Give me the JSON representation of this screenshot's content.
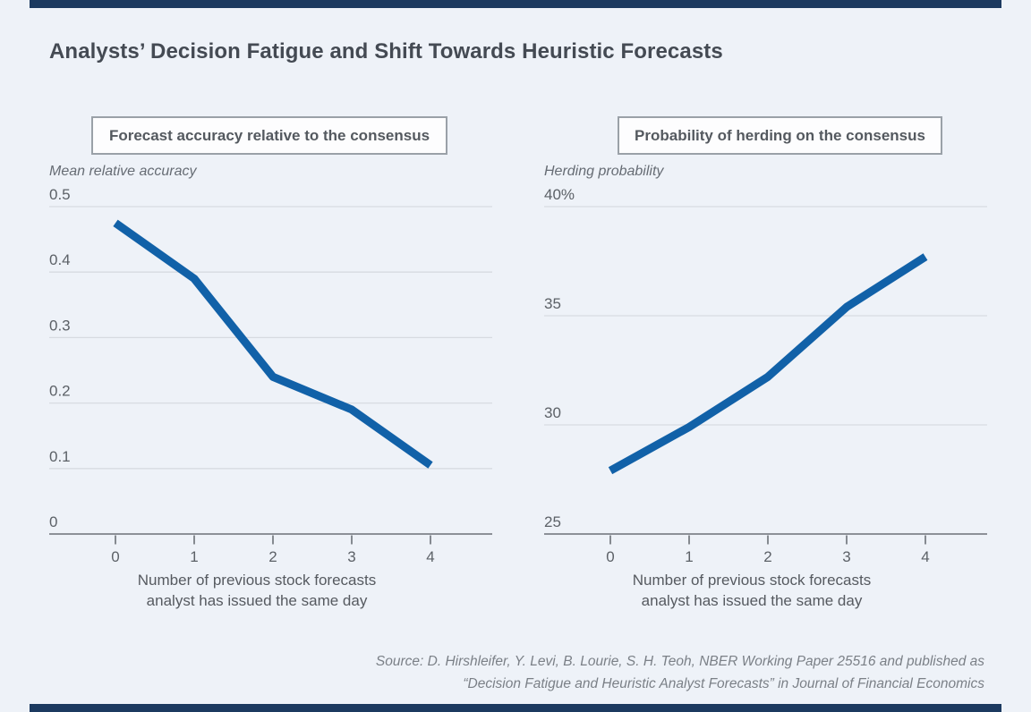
{
  "page": {
    "title": "Analysts’ Decision Fatigue and Shift Towards Heuristic Forecasts",
    "source_line1": "Source: D. Hirshleifer, Y. Levi, B. Lourie, S. H. Teoh, NBER Working Paper 25516 and published as",
    "source_line2": "“Decision Fatigue and Heuristic Analyst Forecasts” in Journal of Financial Economics"
  },
  "colors": {
    "background": "#eef2f8",
    "edge_bar": "#1c3a60",
    "line": "#1161a8",
    "gridline": "#d7dbe1",
    "axis": "#6b7077",
    "tick_label": "#5c6167",
    "axis_title": "#565a60",
    "header_border": "#9aa1a8",
    "title_text": "#444a53"
  },
  "chart_data": [
    {
      "type": "line",
      "title": "Forecast accuracy relative to the consensus",
      "unit_label": "Mean relative accuracy",
      "x": [
        0,
        1,
        2,
        3,
        4
      ],
      "values": [
        0.475,
        0.39,
        0.24,
        0.19,
        0.105
      ],
      "xlabel_lines": [
        "Number of previous stock forecasts",
        "analyst has issued the same day"
      ],
      "ylim": [
        0,
        0.5
      ],
      "yticks": [
        0,
        0.1,
        0.2,
        0.3,
        0.4,
        0.5
      ],
      "ytick_labels": [
        "0",
        "0.1",
        "0.2",
        "0.3",
        "0.4",
        "0.5"
      ],
      "grid": true,
      "legend": "none"
    },
    {
      "type": "line",
      "title": "Probability of herding on the consensus",
      "unit_label": "Herding probability",
      "x": [
        0,
        1,
        2,
        3,
        4
      ],
      "values": [
        27.9,
        29.9,
        32.2,
        35.4,
        37.7
      ],
      "xlabel_lines": [
        "Number of previous stock forecasts",
        "analyst has issued the same day"
      ],
      "ylim": [
        25,
        40
      ],
      "yticks": [
        25,
        30,
        35,
        40
      ],
      "ytick_labels": [
        "25",
        "30",
        "35",
        "40%"
      ],
      "grid": true,
      "legend": "none"
    }
  ]
}
